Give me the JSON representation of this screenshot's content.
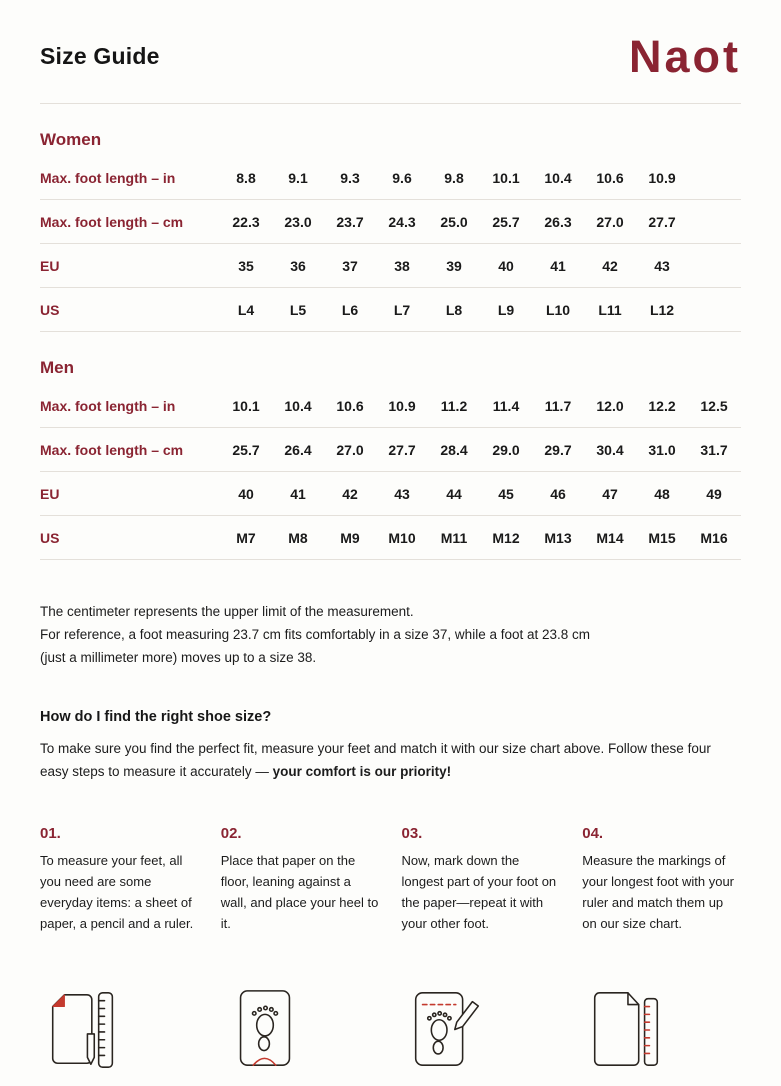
{
  "header": {
    "title": "Size Guide",
    "logo": "Naot"
  },
  "women": {
    "title": "Women",
    "rows": [
      {
        "label": "Max. foot length – in",
        "values": [
          "8.8",
          "9.1",
          "9.3",
          "9.6",
          "9.8",
          "10.1",
          "10.4",
          "10.6",
          "10.9"
        ]
      },
      {
        "label": "Max. foot length – cm",
        "values": [
          "22.3",
          "23.0",
          "23.7",
          "24.3",
          "25.0",
          "25.7",
          "26.3",
          "27.0",
          "27.7"
        ]
      },
      {
        "label": "EU",
        "values": [
          "35",
          "36",
          "37",
          "38",
          "39",
          "40",
          "41",
          "42",
          "43"
        ]
      },
      {
        "label": "US",
        "values": [
          "L4",
          "L5",
          "L6",
          "L7",
          "L8",
          "L9",
          "L10",
          "L11",
          "L12"
        ]
      }
    ]
  },
  "men": {
    "title": "Men",
    "rows": [
      {
        "label": "Max. foot length – in",
        "values": [
          "10.1",
          "10.4",
          "10.6",
          "10.9",
          "11.2",
          "11.4",
          "11.7",
          "12.0",
          "12.2",
          "12.5"
        ]
      },
      {
        "label": "Max. foot length – cm",
        "values": [
          "25.7",
          "26.4",
          "27.0",
          "27.7",
          "28.4",
          "29.0",
          "29.7",
          "30.4",
          "31.0",
          "31.7"
        ]
      },
      {
        "label": "EU",
        "values": [
          "40",
          "41",
          "42",
          "43",
          "44",
          "45",
          "46",
          "47",
          "48",
          "49"
        ]
      },
      {
        "label": "US",
        "values": [
          "M7",
          "M8",
          "M9",
          "M10",
          "M11",
          "M12",
          "M13",
          "M14",
          "M15",
          "M16"
        ]
      }
    ]
  },
  "notes": {
    "line1": "The centimeter represents the upper limit of the measurement.",
    "line2": "For reference, a foot measuring 23.7 cm fits comfortably in a size 37, while a foot at 23.8 cm",
    "line3": "(just a millimeter more) moves up to a size 38."
  },
  "how_to": {
    "heading": "How do I find the right shoe size?",
    "intro_normal": "To make sure you find the perfect fit, measure your feet and match it with our size chart above. Follow these four easy steps to measure it accurately — ",
    "intro_bold": "your comfort is our priority!"
  },
  "steps": [
    {
      "number": "01.",
      "text": "To measure your feet, all you need are some everyday items: a sheet of paper, a pencil and a ruler.",
      "icon": "paper-ruler-pencil-icon"
    },
    {
      "number": "02.",
      "text": "Place that paper on the floor, leaning against a wall, and place your heel to it.",
      "icon": "paper-heel-footprint-icon"
    },
    {
      "number": "03.",
      "text": "Now, mark down the longest part of your foot on the paper—repeat it with your other foot.",
      "icon": "paper-mark-pencil-icon"
    },
    {
      "number": "04.",
      "text": "Measure the markings of your longest foot with your ruler and match them up on our size chart.",
      "icon": "paper-ruler-match-icon"
    }
  ],
  "colors": {
    "brand": "#8a2432",
    "accent_red": "#c43a2e",
    "text": "#1b1b1b",
    "divider": "#e4e0da",
    "background": "#fdfdfb"
  }
}
